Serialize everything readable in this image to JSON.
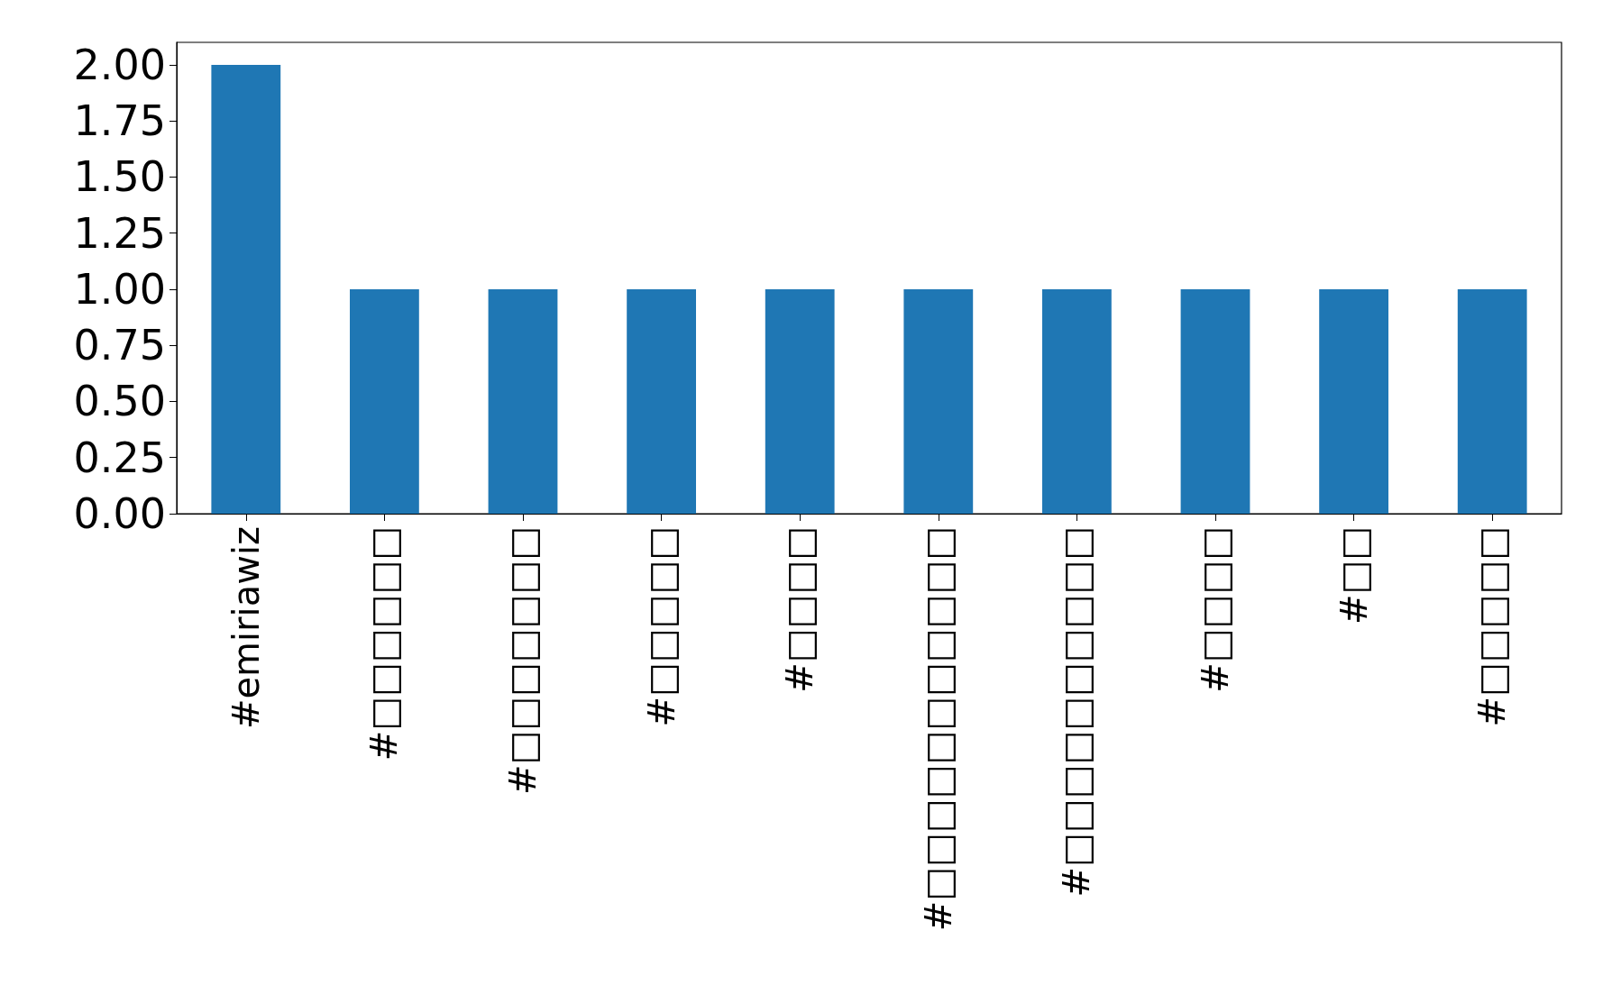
{
  "chart_data": {
    "type": "bar",
    "categories": [
      "#emiriawiz",
      "#□□□□□□",
      "#□□□□□□□",
      "#□□□□□",
      "#□□□□",
      "#□□□□□□□□□□□",
      "#□□□□□□□□□□",
      "#□□□□",
      "#□□",
      "#□□□□□"
    ],
    "values": [
      2,
      1,
      1,
      1,
      1,
      1,
      1,
      1,
      1,
      1
    ],
    "color": "#1f77b4",
    "ylim": [
      0,
      2.1
    ],
    "yticks": [
      {
        "value": 0,
        "label": "0.00"
      },
      {
        "value": 0.25,
        "label": "0.25"
      },
      {
        "value": 0.5,
        "label": "0.50"
      },
      {
        "value": 0.75,
        "label": "0.75"
      },
      {
        "value": 1,
        "label": "1.00"
      },
      {
        "value": 1.25,
        "label": "1.25"
      },
      {
        "value": 1.5,
        "label": "1.50"
      },
      {
        "value": 1.75,
        "label": "1.75"
      },
      {
        "value": 2,
        "label": "2.00"
      }
    ],
    "grid": false
  }
}
